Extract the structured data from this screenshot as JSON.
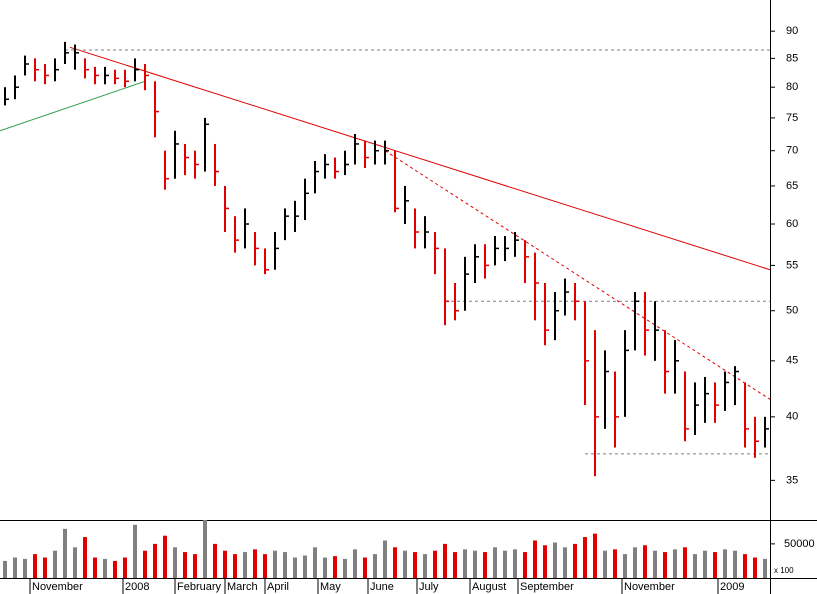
{
  "chart_data": {
    "type": "ohlc",
    "log_y": true,
    "xlim": [
      -0.5,
      76.5
    ],
    "ylim": [
      32.2,
      96.1
    ],
    "yticks": [
      35,
      40,
      45,
      50,
      55,
      60,
      65,
      70,
      75,
      80,
      85,
      90
    ],
    "xticks": [
      {
        "value": 2.5,
        "label": "November"
      },
      {
        "value": 11.8,
        "label": "2008"
      },
      {
        "value": 17,
        "label": "February"
      },
      {
        "value": 22,
        "label": "March"
      },
      {
        "value": 26,
        "label": "April"
      },
      {
        "value": 31.3,
        "label": "May"
      },
      {
        "value": 36.3,
        "label": "June"
      },
      {
        "value": 41.2,
        "label": "July"
      },
      {
        "value": 46.5,
        "label": "August"
      },
      {
        "value": 51.3,
        "label": "September"
      },
      {
        "value": 61.7,
        "label": "November"
      },
      {
        "value": 71.3,
        "label": "2009"
      }
    ],
    "up_color": "#000000",
    "down_color": "#e00000",
    "volume_up_color": "#808080",
    "high": [
      80,
      82,
      85.5,
      85,
      84,
      85,
      88,
      87.5,
      85,
      83.5,
      83.5,
      83,
      83,
      85,
      84,
      81,
      70,
      73,
      71,
      70,
      75,
      71,
      65,
      61,
      62,
      59,
      57,
      59,
      62,
      63,
      66,
      68.5,
      69.5,
      69,
      70,
      72.5,
      71.5,
      71.5,
      71.5,
      70,
      65,
      62,
      61,
      59,
      57,
      53,
      56,
      57.5,
      57.5,
      58.5,
      58.5,
      59,
      58,
      56.5,
      53,
      52,
      53.5,
      53,
      51,
      48,
      46,
      44,
      48,
      52,
      52,
      51,
      48,
      47,
      44,
      43,
      43.5,
      43,
      44,
      44.5,
      43,
      40,
      40
    ],
    "low": [
      77,
      78,
      82,
      81,
      80.5,
      81,
      84,
      83,
      81.5,
      80.5,
      80.5,
      80.5,
      80,
      81,
      79.5,
      72,
      64.5,
      66,
      66.5,
      66,
      67,
      65,
      59,
      56.5,
      57,
      55,
      54,
      54.5,
      58,
      59,
      60.5,
      64,
      66,
      66,
      66.5,
      68,
      67.5,
      68,
      68,
      61.5,
      60,
      57,
      57,
      54,
      48.5,
      49,
      50,
      53,
      53.5,
      55,
      55.5,
      56,
      53,
      49,
      46.5,
      47,
      49.5,
      49,
      41,
      35.3,
      39,
      37.5,
      40,
      46,
      45.5,
      45,
      42,
      42,
      38,
      38.5,
      39.5,
      39.5,
      40.5,
      41,
      37.5,
      36.7,
      37.5
    ],
    "close": [
      78,
      80,
      84,
      83,
      82,
      83,
      86,
      86,
      83,
      82,
      82,
      81.5,
      81,
      83,
      82,
      76,
      66,
      71,
      69,
      68,
      74,
      67,
      62,
      58,
      60,
      57,
      54.5,
      57,
      61,
      61,
      64,
      67,
      68,
      67,
      68,
      71,
      69,
      70,
      70,
      62,
      63,
      59,
      59,
      57,
      51,
      50,
      54,
      56,
      55,
      57,
      57,
      58,
      56,
      53,
      48,
      50,
      52,
      51,
      45,
      40,
      44,
      40,
      46,
      51,
      48,
      48,
      44,
      45,
      39,
      41,
      42,
      41,
      43,
      44,
      39,
      38,
      39
    ],
    "volume": [
      25000,
      30000,
      28000,
      35000,
      30000,
      40000,
      72000,
      45000,
      60000,
      30000,
      28000,
      25000,
      30000,
      78000,
      40000,
      50000,
      62000,
      45000,
      38000,
      35000,
      85000,
      50000,
      40000,
      35000,
      38000,
      42000,
      35000,
      40000,
      38000,
      30000,
      33000,
      45000,
      30000,
      32000,
      28000,
      42000,
      30000,
      35000,
      55000,
      45000,
      40000,
      38000,
      35000,
      40000,
      50000,
      38000,
      42000,
      40000,
      38000,
      45000,
      40000,
      42000,
      38000,
      55000,
      48000,
      52000,
      45000,
      50000,
      60000,
      65000,
      40000,
      42000,
      35000,
      45000,
      48000,
      40000,
      38000,
      42000,
      45000,
      35000,
      40000,
      38000,
      42000,
      40000,
      35000,
      30000,
      28000
    ],
    "volume_ylim": [
      0,
      85000
    ],
    "volume_yticks": [
      50000
    ],
    "volume_unit": "x 100",
    "lines": [
      {
        "from": [
          6.5,
          87
        ],
        "to": [
          76.5,
          54.5
        ],
        "color": "#e00000",
        "style": "solid"
      },
      {
        "from": [
          38,
          70
        ],
        "to": [
          76.5,
          41.5
        ],
        "color": "#e00000",
        "style": "dotted"
      },
      {
        "from": [
          -0.5,
          73
        ],
        "to": [
          14,
          81
        ],
        "color": "#2e9e4a",
        "style": "solid"
      },
      {
        "from": [
          6,
          86.5
        ],
        "to": [
          76.5,
          86.5
        ],
        "color": "#808080",
        "style": "dotted"
      },
      {
        "from": [
          44,
          51
        ],
        "to": [
          76.5,
          51
        ],
        "color": "#808080",
        "style": "dotted"
      },
      {
        "from": [
          58,
          37
        ],
        "to": [
          76.5,
          37
        ],
        "color": "#808080",
        "style": "dotted"
      }
    ]
  }
}
